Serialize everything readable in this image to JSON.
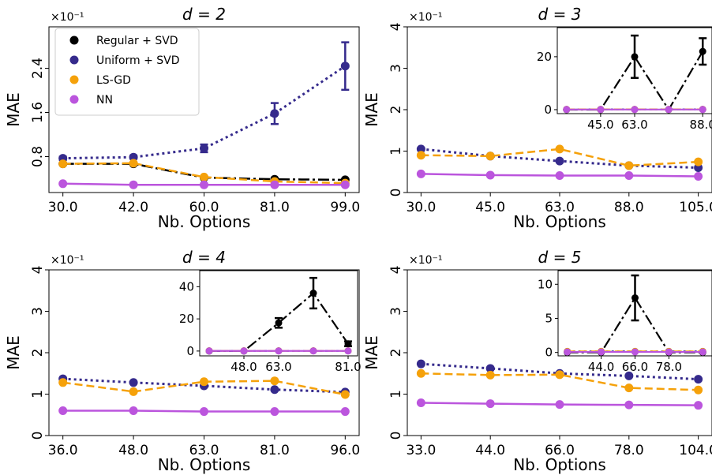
{
  "y_multiplier": "×10⁻¹",
  "series_styles": [
    {
      "name": "Regular + SVD",
      "color": "#000000",
      "dash": "14,4,3,4",
      "width": 2.5
    },
    {
      "name": "Uniform + SVD",
      "color": "#352a8c",
      "dash": "3,4",
      "width": 3
    },
    {
      "name": "LS-GD",
      "color": "#f5a10a",
      "dash": "10,5",
      "width": 2.5
    },
    {
      "name": "NN",
      "color": "#bb55dd",
      "dash": "",
      "width": 2.5
    }
  ],
  "chart_data": [
    {
      "type": "line",
      "title": "d = 2",
      "xlabel": "Nb. Options",
      "ylabel": "MAE",
      "x": [
        "30.0",
        "42.0",
        "60.0",
        "81.0",
        "99.0"
      ],
      "yticks": [
        "0.8",
        "1.6",
        "2.4"
      ],
      "legend": "top-left",
      "series": [
        {
          "name": "Regular + SVD",
          "values": [
            0.67,
            0.67,
            0.42,
            0.39,
            0.38
          ]
        },
        {
          "name": "Uniform + SVD",
          "values": [
            0.77,
            0.79,
            0.95,
            1.58,
            2.44
          ],
          "err": [
            0.03,
            0.03,
            0.07,
            0.19,
            0.43
          ]
        },
        {
          "name": "LS-GD",
          "values": [
            0.67,
            0.68,
            0.43,
            0.35,
            0.32
          ]
        },
        {
          "name": "NN",
          "values": [
            0.31,
            0.29,
            0.29,
            0.29,
            0.29
          ]
        }
      ]
    },
    {
      "type": "line",
      "title": "d = 3",
      "xlabel": "Nb. Options",
      "ylabel": "MAE",
      "x": [
        "30.0",
        "45.0",
        "63.0",
        "88.0",
        "105.0"
      ],
      "yticks": [
        "0",
        "1",
        "2",
        "3",
        "4"
      ],
      "series": [
        {
          "name": "Uniform + SVD",
          "values": [
            1.05,
            0.88,
            0.76,
            0.65,
            0.6
          ]
        },
        {
          "name": "LS-GD",
          "values": [
            0.9,
            0.88,
            1.05,
            0.65,
            0.74
          ]
        },
        {
          "name": "NN",
          "values": [
            0.45,
            0.42,
            0.41,
            0.41,
            0.39
          ]
        }
      ],
      "inset": {
        "xticks": [
          "45.0",
          "63.0",
          "88.0"
        ],
        "yticks": [
          "0",
          "20"
        ],
        "series": [
          {
            "name": "Regular + SVD",
            "values": [
              0,
              0,
              20,
              0,
              22
            ],
            "err": [
              0,
              0,
              8,
              0,
              5
            ]
          },
          {
            "name": "Uniform + SVD",
            "values": [
              0.1,
              0.1,
              0.1,
              0.1,
              0.1
            ]
          },
          {
            "name": "LS-GD",
            "values": [
              0.1,
              0.1,
              0.1,
              0.1,
              0.1
            ]
          },
          {
            "name": "NN",
            "values": [
              0.05,
              0.05,
              0.05,
              0.05,
              0.05
            ]
          }
        ]
      }
    },
    {
      "type": "line",
      "title": "d = 4",
      "xlabel": "Nb. Options",
      "ylabel": "MAE",
      "x": [
        "36.0",
        "48.0",
        "63.0",
        "81.0",
        "96.0"
      ],
      "yticks": [
        "0",
        "1",
        "2",
        "3",
        "4"
      ],
      "series": [
        {
          "name": "Uniform + SVD",
          "values": [
            1.37,
            1.28,
            1.2,
            1.11,
            1.05
          ]
        },
        {
          "name": "LS-GD",
          "values": [
            1.28,
            1.06,
            1.3,
            1.32,
            0.99
          ]
        },
        {
          "name": "NN",
          "values": [
            0.6,
            0.6,
            0.58,
            0.58,
            0.58
          ]
        }
      ],
      "inset": {
        "xticks": [
          "48.0",
          "63.0",
          "81.0"
        ],
        "yticks": [
          "0",
          "20",
          "40"
        ],
        "series": [
          {
            "name": "Regular + SVD",
            "values": [
              0,
              0,
              17.5,
              36,
              4.5
            ],
            "err": [
              0,
              0,
              3,
              9.5,
              1.5
            ]
          },
          {
            "name": "Uniform + SVD",
            "values": [
              0.1,
              0.1,
              0.1,
              0.1,
              0.1
            ]
          },
          {
            "name": "LS-GD",
            "values": [
              0.1,
              0.1,
              0.1,
              0.1,
              0.1
            ]
          },
          {
            "name": "NN",
            "values": [
              0.06,
              0.06,
              0.06,
              0.06,
              0.06
            ]
          }
        ]
      }
    },
    {
      "type": "line",
      "title": "d = 5",
      "xlabel": "Nb. Options",
      "ylabel": "MAE",
      "x": [
        "33.0",
        "44.0",
        "66.0",
        "78.0",
        "104.0"
      ],
      "yticks": [
        "0",
        "1",
        "2",
        "3",
        "4"
      ],
      "series": [
        {
          "name": "Uniform + SVD",
          "values": [
            1.73,
            1.62,
            1.5,
            1.44,
            1.36
          ]
        },
        {
          "name": "LS-GD",
          "values": [
            1.5,
            1.46,
            1.47,
            1.15,
            1.1
          ]
        },
        {
          "name": "NN",
          "values": [
            0.79,
            0.77,
            0.75,
            0.74,
            0.73
          ]
        }
      ],
      "inset": {
        "xticks": [
          "44.0",
          "66.0",
          "78.0"
        ],
        "yticks": [
          "0",
          "5",
          "10"
        ],
        "series": [
          {
            "name": "Regular + SVD",
            "values": [
              0,
              0,
              8,
              0,
              0
            ],
            "err": [
              0,
              0,
              3.3,
              0,
              0
            ]
          },
          {
            "name": "Uniform + SVD",
            "values": [
              0.15,
              0.15,
              0.15,
              0.15,
              0.15
            ]
          },
          {
            "name": "LS-GD",
            "values": [
              0.15,
              0.15,
              0.15,
              0.15,
              0.15
            ]
          },
          {
            "name": "NN",
            "values": [
              0.07,
              0.07,
              0.07,
              0.07,
              0.07
            ]
          }
        ]
      }
    }
  ]
}
